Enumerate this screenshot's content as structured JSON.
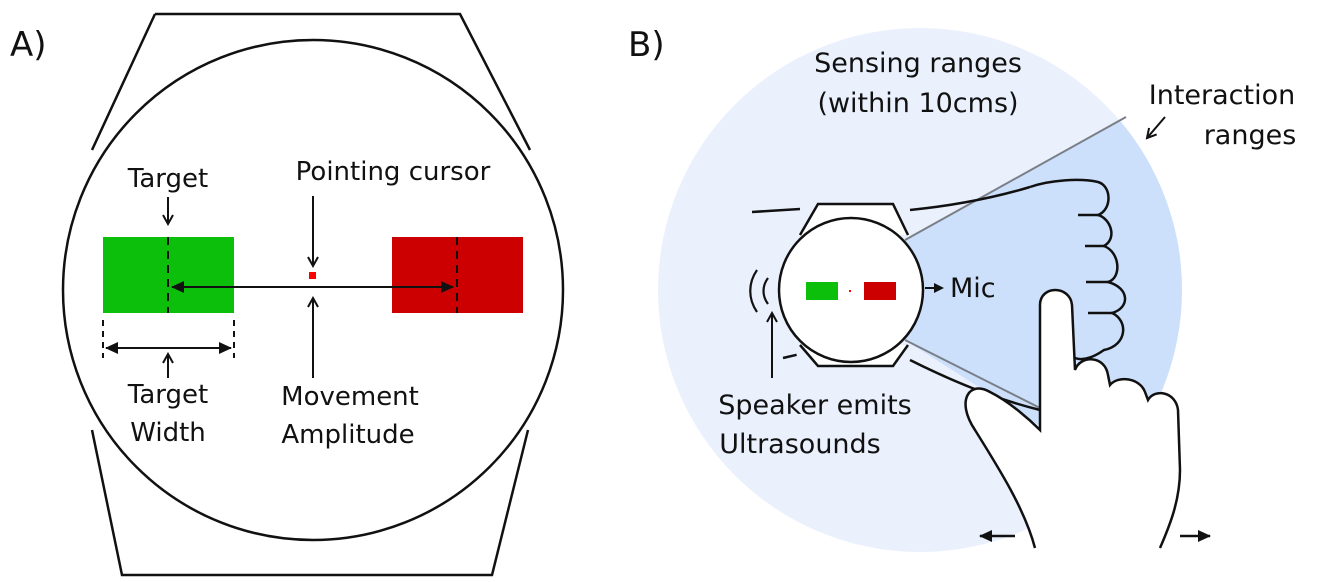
{
  "panel_a": {
    "label": "A)",
    "target_label": "Target",
    "cursor_label": "Pointing cursor",
    "width_label_line1": "Target",
    "width_label_line2": "Width",
    "amplitude_label_line1": "Movement",
    "amplitude_label_line2": "Amplitude"
  },
  "panel_b": {
    "label": "B)",
    "sensing_line1": "Sensing ranges",
    "sensing_line2": "(within 10cms)",
    "interaction_line1": "Interaction",
    "interaction_line2": "ranges",
    "mic_label": "Mic",
    "speaker_line1": "Speaker emits",
    "speaker_line2": "Ultrasounds"
  },
  "colors": {
    "target_green": "#0bbf0b",
    "target_red": "#cc0000",
    "cursor_red": "#ff0000",
    "sensing_range": "#eaf1fd",
    "interaction_range": "#cde0fb",
    "outline": "#111111"
  }
}
